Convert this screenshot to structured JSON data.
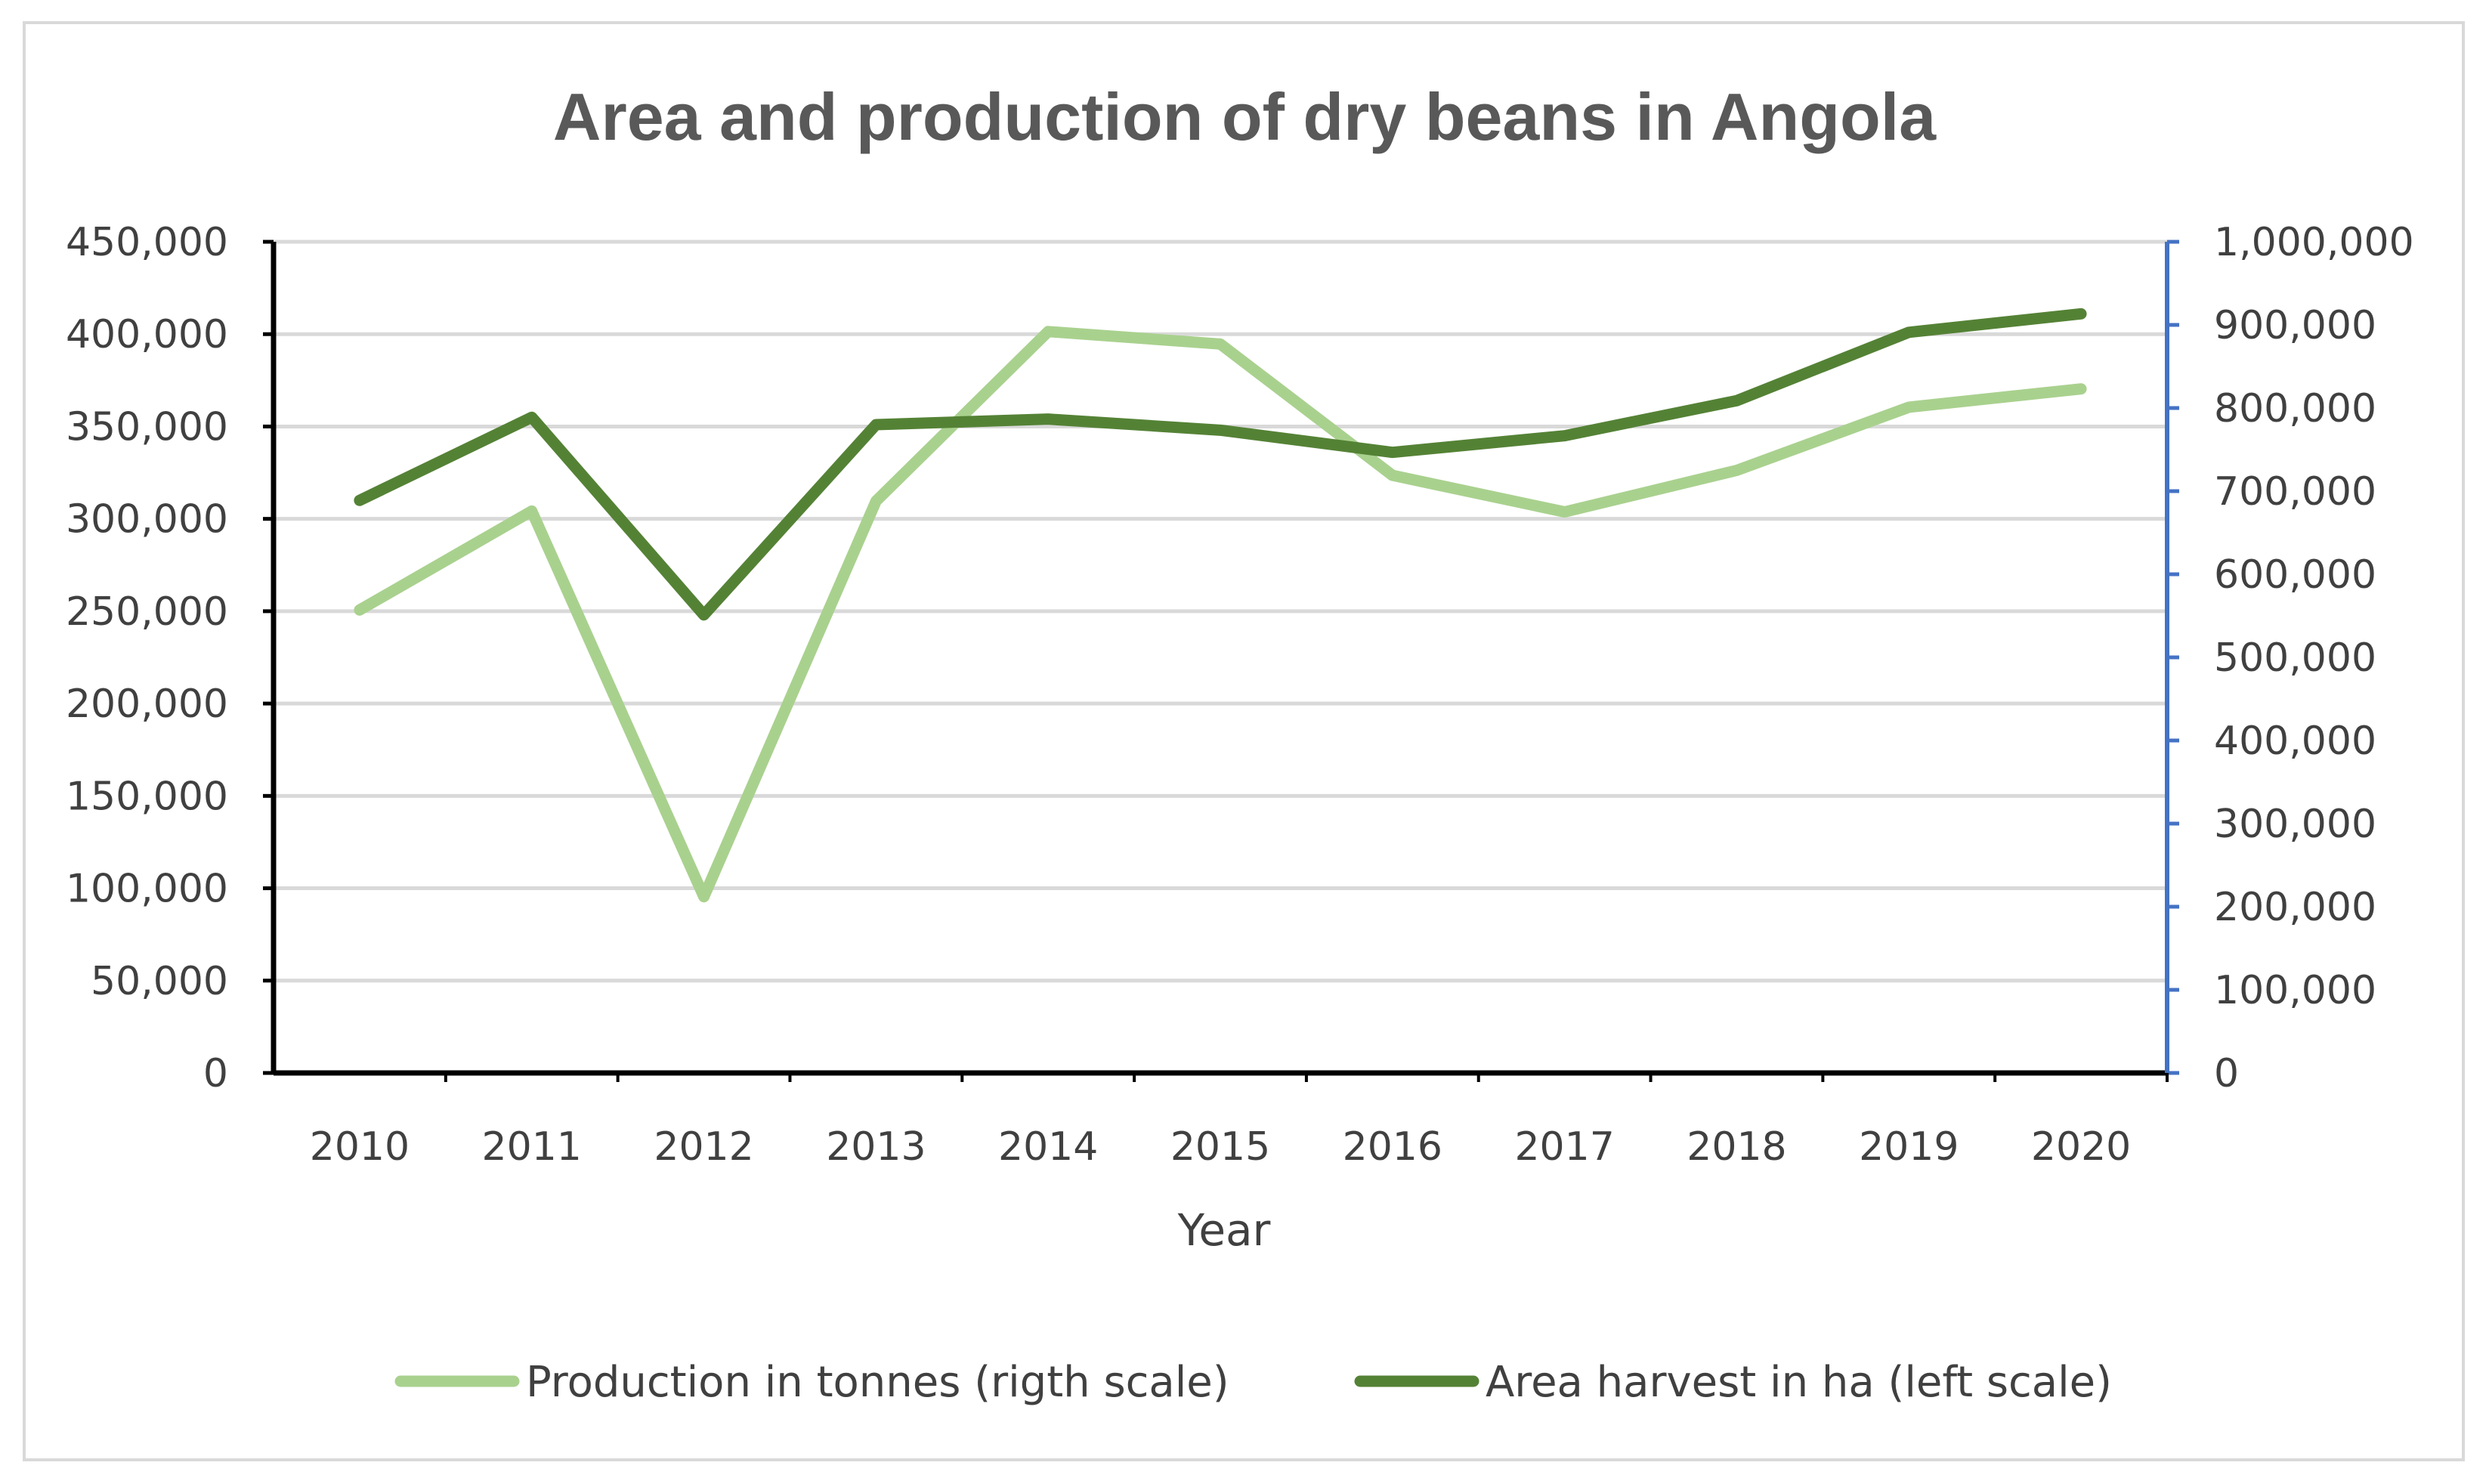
{
  "chart_data": {
    "type": "line",
    "title": "Area and production of dry beans in Angola",
    "xlabel": "Year",
    "ylabel_left": "",
    "ylabel_right": "",
    "categories": [
      "2010",
      "2011",
      "2012",
      "2013",
      "2014",
      "2015",
      "2016",
      "2017",
      "2018",
      "2019",
      "2020"
    ],
    "left_axis": {
      "ylim": [
        0,
        450000
      ],
      "ticks": [
        0,
        50000,
        100000,
        150000,
        200000,
        250000,
        300000,
        350000,
        400000,
        450000
      ],
      "tick_labels": [
        "0",
        "50,000",
        "100,000",
        "150,000",
        "200,000",
        "250,000",
        "300,000",
        "350,000",
        "400,000",
        "450,000"
      ]
    },
    "right_axis": {
      "ylim": [
        0,
        1000000
      ],
      "ticks": [
        0,
        100000,
        200000,
        300000,
        400000,
        500000,
        600000,
        700000,
        800000,
        900000,
        1000000
      ],
      "tick_labels": [
        "0",
        "100,000",
        "200,000",
        "300,000",
        "400,000",
        "500,000",
        "600,000",
        "700,000",
        "800,000",
        "900,000",
        "1,000,000"
      ]
    },
    "grid": true,
    "legend_position": "bottom",
    "series": [
      {
        "name": "Production in tonnes (rigth scale)",
        "axis": "right",
        "color": "#a9d18e",
        "values": [
          557000,
          676000,
          212000,
          688000,
          892000,
          877000,
          719000,
          675000,
          725000,
          801000,
          823000
        ]
      },
      {
        "name": "Area harvest in ha (left scale)",
        "axis": "left",
        "color": "#548235",
        "values": [
          310000,
          355000,
          248000,
          351000,
          354000,
          348000,
          336000,
          345000,
          364000,
          401000,
          411000
        ]
      }
    ]
  }
}
